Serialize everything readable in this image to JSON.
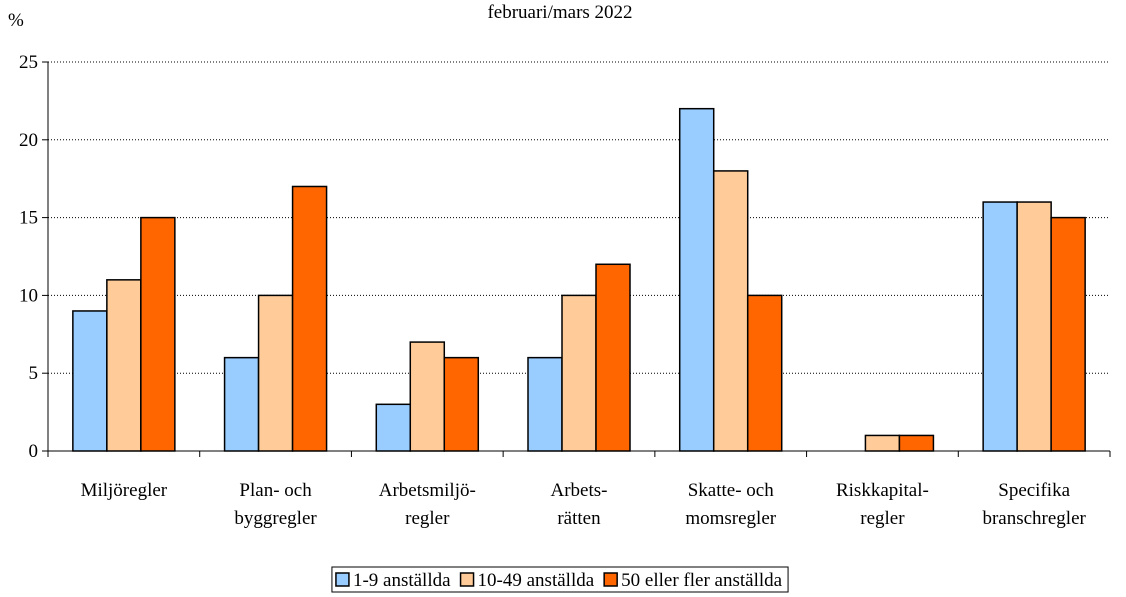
{
  "chart_data": {
    "type": "bar",
    "title": "februari/mars 2022",
    "y_label": "%",
    "categories": [
      "Miljöregler",
      "Plan- och\nbyggregler",
      "Arbetsmiljö-\nregler",
      "Arbets-\nrätten",
      "Skatte- och\nmomsregler",
      "Riskkapital-\nregler",
      "Specifika\nbranschregler"
    ],
    "series": [
      {
        "name": "1-9 anställda",
        "color": "#99ccff",
        "values": [
          9,
          6,
          3,
          6,
          22,
          0,
          16
        ]
      },
      {
        "name": "10-49 anställda",
        "color": "#ffcc99",
        "values": [
          11,
          10,
          7,
          10,
          18,
          1,
          16
        ]
      },
      {
        "name": "50 eller fler anställda",
        "color": "#ff6600",
        "values": [
          15,
          17,
          6,
          12,
          10,
          1,
          15
        ]
      }
    ],
    "ylim": [
      0,
      25
    ],
    "yticks": [
      0,
      5,
      10,
      15,
      20,
      25
    ],
    "grid": true,
    "legend": "bottom"
  }
}
